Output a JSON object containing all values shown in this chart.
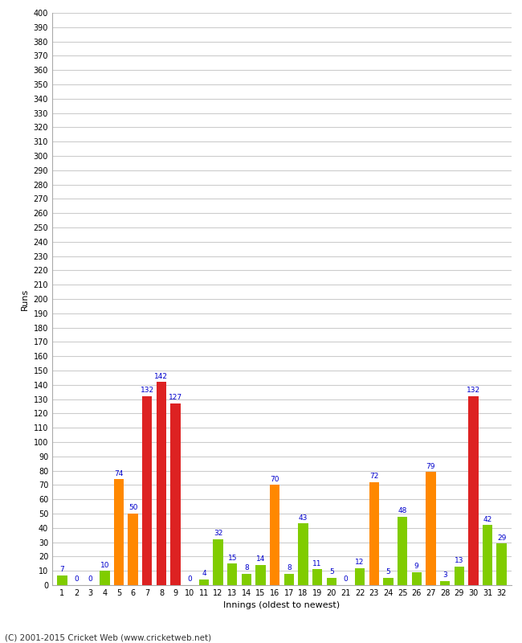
{
  "xlabel": "Innings (oldest to newest)",
  "ylabel": "Runs",
  "values": [
    7,
    0,
    0,
    10,
    74,
    50,
    132,
    142,
    127,
    0,
    4,
    32,
    15,
    8,
    14,
    70,
    8,
    43,
    11,
    5,
    0,
    12,
    72,
    5,
    48,
    9,
    79,
    3,
    13,
    132,
    42,
    29
  ],
  "colors": [
    "#80cc00",
    "#80cc00",
    "#80cc00",
    "#80cc00",
    "#ff8800",
    "#ff8800",
    "#dd2222",
    "#dd2222",
    "#dd2222",
    "#80cc00",
    "#80cc00",
    "#80cc00",
    "#80cc00",
    "#80cc00",
    "#80cc00",
    "#ff8800",
    "#80cc00",
    "#80cc00",
    "#80cc00",
    "#80cc00",
    "#80cc00",
    "#80cc00",
    "#ff8800",
    "#80cc00",
    "#80cc00",
    "#80cc00",
    "#ff8800",
    "#80cc00",
    "#80cc00",
    "#dd2222",
    "#80cc00",
    "#80cc00"
  ],
  "innings": [
    1,
    2,
    3,
    4,
    5,
    6,
    7,
    8,
    9,
    10,
    11,
    12,
    13,
    14,
    15,
    16,
    17,
    18,
    19,
    20,
    21,
    22,
    23,
    24,
    25,
    26,
    27,
    28,
    29,
    30,
    31,
    32
  ],
  "ylim": [
    0,
    400
  ],
  "yticks": [
    0,
    10,
    20,
    30,
    40,
    50,
    60,
    70,
    80,
    90,
    100,
    110,
    120,
    130,
    140,
    150,
    160,
    170,
    180,
    190,
    200,
    210,
    220,
    230,
    240,
    250,
    260,
    270,
    280,
    290,
    300,
    310,
    320,
    330,
    340,
    350,
    360,
    370,
    380,
    390,
    400
  ],
  "label_color": "#0000cc",
  "background_color": "#ffffff",
  "grid_color": "#cccccc",
  "footer": "(C) 2001-2015 Cricket Web (www.cricketweb.net)"
}
